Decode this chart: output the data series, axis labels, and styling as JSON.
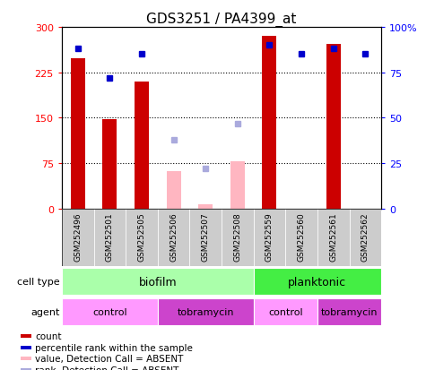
{
  "title": "GDS3251 / PA4399_at",
  "samples": [
    "GSM252496",
    "GSM252501",
    "GSM252505",
    "GSM252506",
    "GSM252507",
    "GSM252508",
    "GSM252559",
    "GSM252560",
    "GSM252561",
    "GSM252562"
  ],
  "count_values": [
    248,
    148,
    210,
    null,
    null,
    null,
    285,
    null,
    272,
    null
  ],
  "count_absent": [
    null,
    null,
    null,
    62,
    8,
    78,
    null,
    null,
    null,
    null
  ],
  "percentile_present": [
    88,
    72,
    85,
    null,
    null,
    null,
    90,
    85,
    88,
    85
  ],
  "percentile_absent": [
    null,
    null,
    null,
    38,
    22,
    47,
    null,
    null,
    null,
    null
  ],
  "ylim_left": [
    0,
    300
  ],
  "ylim_right": [
    0,
    100
  ],
  "yticks_left": [
    0,
    75,
    150,
    225,
    300
  ],
  "yticks_right": [
    0,
    25,
    50,
    75,
    100
  ],
  "ytick_labels_left": [
    "0",
    "75",
    "150",
    "225",
    "300"
  ],
  "ytick_labels_right": [
    "0",
    "25",
    "50",
    "75",
    "100%"
  ],
  "color_count_present": "#CC0000",
  "color_count_absent": "#FFB6C1",
  "color_percentile_present": "#0000CC",
  "color_percentile_absent": "#AAAADD",
  "cell_type_biofilm_color": "#AAFFAA",
  "cell_type_planktonic_color": "#44EE44",
  "agent_control_color": "#FF99FF",
  "agent_tobramycin_color": "#CC44CC",
  "sample_box_color": "#CCCCCC",
  "legend_items": [
    {
      "label": "count",
      "color": "#CC0000"
    },
    {
      "label": "percentile rank within the sample",
      "color": "#0000CC"
    },
    {
      "label": "value, Detection Call = ABSENT",
      "color": "#FFB6C1"
    },
    {
      "label": "rank, Detection Call = ABSENT",
      "color": "#AAAADD"
    }
  ]
}
